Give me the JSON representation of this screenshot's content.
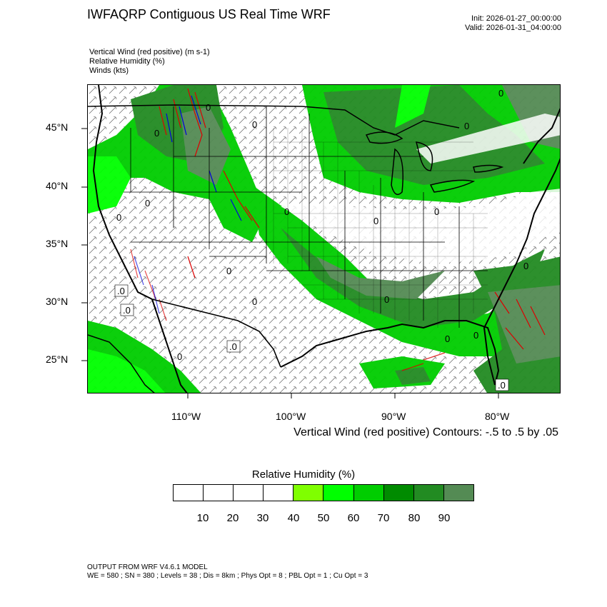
{
  "header": {
    "title": "IWFAQRP Contiguous US Real Time WRF",
    "init": "Init: 2026-01-27_00:00:00",
    "valid": "Valid: 2026-01-31_04:00:00"
  },
  "variables": [
    "Vertical Wind (red positive)   (m s-1)",
    "Relative Humidity   (%)",
    "Winds   (kts)"
  ],
  "map": {
    "lat_labels": [
      "45°N",
      "40°N",
      "35°N",
      "30°N",
      "25°N"
    ],
    "lon_labels": [
      "110°W",
      "100°W",
      "90°W",
      "80°W"
    ],
    "contour_zero_label": "0",
    "contour_box_label": ".0",
    "colors": {
      "rh_50": "#7fff00",
      "rh_60": "#00ff00",
      "rh_70": "#00cd00",
      "rh_80": "#008b00",
      "rh_90": "#228b22",
      "rh_100": "#548b54",
      "updraft": "#dd0000",
      "downdraft": "#0000dd"
    }
  },
  "contour_info": "Vertical Wind (red positive) Contours: -.5 to .5 by .05",
  "colorbar": {
    "title": "Relative Humidity   (%)",
    "colors": [
      "#ffffff",
      "#ffffff",
      "#ffffff",
      "#ffffff",
      "#7fff00",
      "#00ff00",
      "#00cd00",
      "#008b00",
      "#228b22",
      "#548b54"
    ],
    "labels": [
      "10",
      "20",
      "30",
      "40",
      "50",
      "60",
      "70",
      "80",
      "90"
    ]
  },
  "footer": {
    "line1": "OUTPUT FROM WRF V4.6.1 MODEL",
    "line2": "WE = 580 ; SN = 380 ; Levels = 38 ; Dis = 8km ; Phys Opt = 8 ; PBL Opt = 1 ; Cu Opt = 3"
  }
}
